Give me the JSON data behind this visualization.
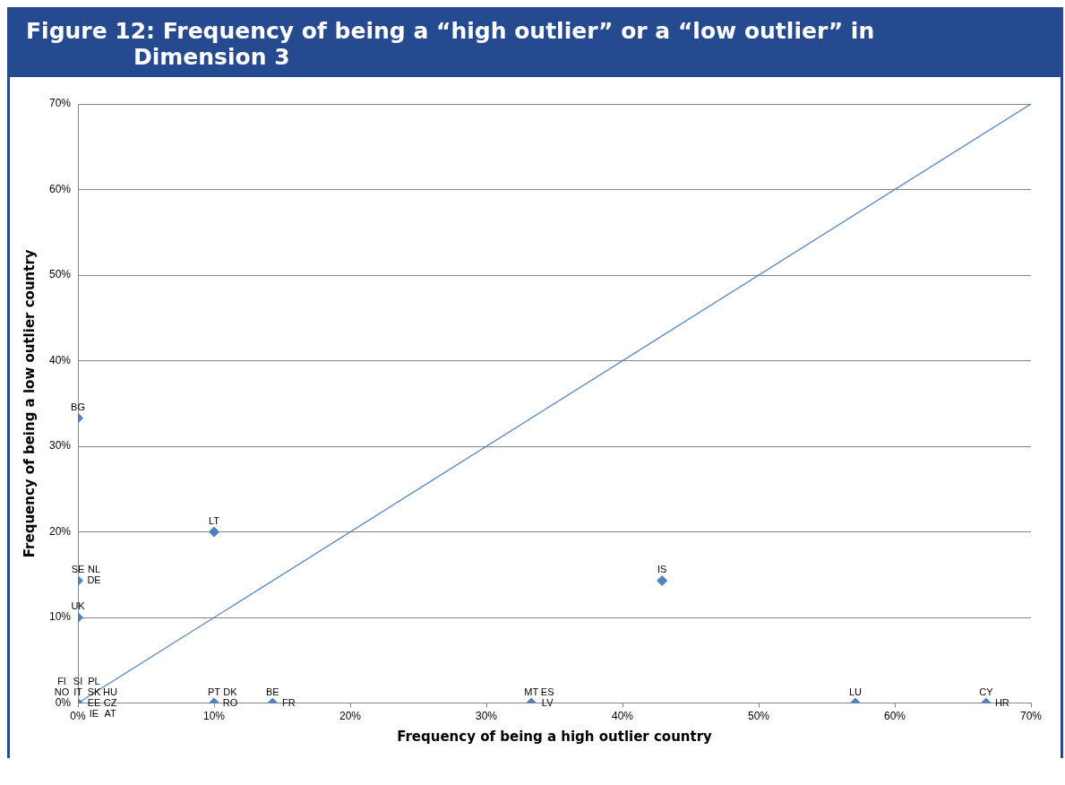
{
  "chart_data": {
    "type": "scatter",
    "title": "Figure 12: Frequency of being a “high outlier” or a “low outlier” in Dimension 3",
    "xlabel": "Frequency of being a high outlier country",
    "ylabel": "Frequency of being a low outlier country",
    "xlim": [
      0,
      70
    ],
    "ylim": [
      0,
      70
    ],
    "xticks": [
      {
        "value": 0,
        "label": "0%"
      },
      {
        "value": 10,
        "label": "10%"
      },
      {
        "value": 20,
        "label": "20%"
      },
      {
        "value": 30,
        "label": "30%"
      },
      {
        "value": 40,
        "label": "40%"
      },
      {
        "value": 50,
        "label": "50%"
      },
      {
        "value": 60,
        "label": "60%"
      },
      {
        "value": 70,
        "label": "70%"
      }
    ],
    "yticks": [
      {
        "value": 0,
        "label": "0%"
      },
      {
        "value": 10,
        "label": "10%"
      },
      {
        "value": 20,
        "label": "20%"
      },
      {
        "value": 30,
        "label": "30%"
      },
      {
        "value": 40,
        "label": "40%"
      },
      {
        "value": 50,
        "label": "50%"
      },
      {
        "value": 60,
        "label": "60%"
      },
      {
        "value": 70,
        "label": "70%"
      }
    ],
    "grid": "y",
    "legend": false,
    "series": [
      {
        "type": "scatter",
        "color": "#4f81bd",
        "marker": "diamond",
        "x": [
          0,
          10,
          0,
          0,
          42.9,
          0,
          10,
          14.3,
          33.3,
          57.1,
          66.7
        ],
        "values": [
          33.3,
          20,
          14.3,
          10,
          14.3,
          0,
          0,
          0,
          0,
          0,
          0
        ]
      },
      {
        "type": "line",
        "color": "#4f81bd",
        "marker": "none",
        "line_style": "solid",
        "x": [
          0,
          70
        ],
        "values": [
          0,
          70
        ]
      }
    ],
    "annotations": [
      {
        "text": "BG",
        "x": 0,
        "y": 33.3
      },
      {
        "text": "LT",
        "x": 10,
        "y": 20
      },
      {
        "text": "SE",
        "x": 0,
        "y": 14.3
      },
      {
        "text": "DE",
        "x": 0,
        "y": 14.3
      },
      {
        "text": "NL",
        "x": 0,
        "y": 14.3
      },
      {
        "text": "UK",
        "x": 0,
        "y": 10
      },
      {
        "text": "IS",
        "x": 42.9,
        "y": 14.3
      },
      {
        "text": "IT",
        "x": 0,
        "y": 0
      },
      {
        "text": "EE",
        "x": 0,
        "y": 0
      },
      {
        "text": "SK",
        "x": 0,
        "y": 0
      },
      {
        "text": "NO",
        "x": 0,
        "y": 0
      },
      {
        "text": "IE",
        "x": 0,
        "y": 0
      },
      {
        "text": "SI",
        "x": 0,
        "y": 0
      },
      {
        "text": "PL",
        "x": 0,
        "y": 0
      },
      {
        "text": "FI",
        "x": 0,
        "y": 0
      },
      {
        "text": "HU",
        "x": 0,
        "y": 0
      },
      {
        "text": "CZ",
        "x": 0,
        "y": 0
      },
      {
        "text": "AT",
        "x": 0,
        "y": 0
      },
      {
        "text": "PT",
        "x": 10,
        "y": 0
      },
      {
        "text": "RO",
        "x": 10,
        "y": 0
      },
      {
        "text": "DK",
        "x": 10,
        "y": 0
      },
      {
        "text": "BE",
        "x": 14.3,
        "y": 0
      },
      {
        "text": "FR",
        "x": 14.3,
        "y": 0
      },
      {
        "text": "MT",
        "x": 33.3,
        "y": 0
      },
      {
        "text": "LV",
        "x": 33.3,
        "y": 0
      },
      {
        "text": "ES",
        "x": 33.3,
        "y": 0
      },
      {
        "text": "LU",
        "x": 57.1,
        "y": 0
      },
      {
        "text": "CY",
        "x": 66.7,
        "y": 0
      },
      {
        "text": "HR",
        "x": 66.7,
        "y": 0
      }
    ]
  }
}
